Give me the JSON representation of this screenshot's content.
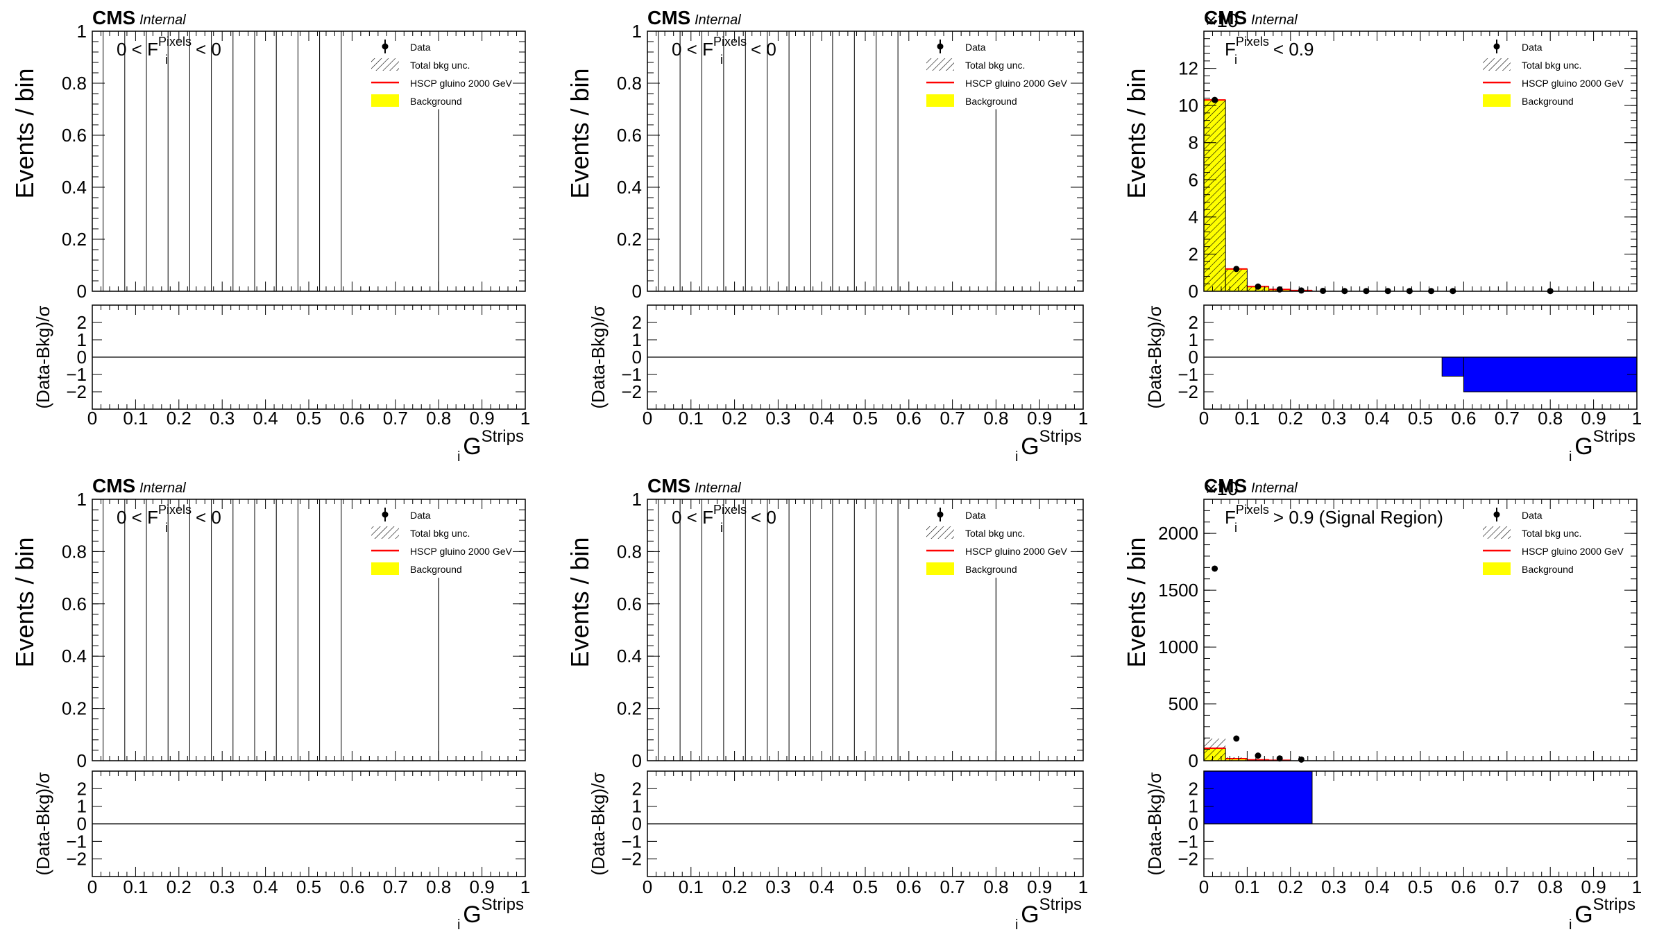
{
  "cms_label": "CMS",
  "internal_label": "Internal",
  "exponent_label": "×10",
  "y_axis_label": "Events / bin",
  "ratio_axis_label": "(Data-Bkg)/σ",
  "x_axis_label": {
    "base": "G",
    "sup": "Strips",
    "sub": "i"
  },
  "legend": [
    {
      "label": "Data",
      "style": "marker"
    },
    {
      "label": "Total bkg unc.",
      "style": "hatch"
    },
    {
      "label": "HSCP gluino 2000 GeV",
      "style": "line",
      "color": "#ff0000"
    },
    {
      "label": "Background",
      "style": "fill",
      "color": "#ffff00"
    }
  ],
  "colors": {
    "background_fill": "#ffff00",
    "signal_line": "#ff0000",
    "pull_fill": "#0000ff",
    "hatch": "#000000"
  },
  "x_ticks": [
    "0",
    "0.1",
    "0.2",
    "0.3",
    "0.4",
    "0.5",
    "0.6",
    "0.7",
    "0.8",
    "0.9",
    "1"
  ],
  "ratio_ticks": [
    "2",
    "1",
    "0",
    "−1",
    "−2"
  ],
  "chart_data": [
    {
      "type": "bar",
      "region_label": {
        "prefix": "0 < F",
        "sup": "Pixels",
        "sub": "i",
        "suffix": "< 0"
      },
      "xlim": [
        0,
        1
      ],
      "ylim": [
        0,
        1
      ],
      "y_ticks": [
        "0",
        "0.2",
        "0.4",
        "0.6",
        "0.8",
        "1"
      ],
      "y_tick_values": [
        0,
        0.2,
        0.4,
        0.6,
        0.8,
        1
      ],
      "show_exponent": false,
      "bin_edges_x": [
        0.025,
        0.075,
        0.125,
        0.175,
        0.225,
        0.275,
        0.325,
        0.375,
        0.425,
        0.475,
        0.525,
        0.575
      ],
      "background": [],
      "uncertainty": [],
      "data_points": [],
      "pulls": [],
      "signal_line_x": 0.8,
      "signal_line_y": 0.7
    },
    {
      "type": "bar",
      "region_label": {
        "prefix": "0 < F",
        "sup": "Pixels",
        "sub": "i",
        "suffix": "< 0"
      },
      "xlim": [
        0,
        1
      ],
      "ylim": [
        0,
        1
      ],
      "y_ticks": [
        "0",
        "0.2",
        "0.4",
        "0.6",
        "0.8",
        "1"
      ],
      "y_tick_values": [
        0,
        0.2,
        0.4,
        0.6,
        0.8,
        1
      ],
      "show_exponent": false,
      "bin_edges_x": [
        0.025,
        0.075,
        0.125,
        0.175,
        0.225,
        0.275,
        0.325,
        0.375,
        0.425,
        0.475,
        0.525,
        0.575
      ],
      "background": [],
      "uncertainty": [],
      "data_points": [],
      "pulls": [],
      "signal_line_x": 0.8,
      "signal_line_y": 0.7
    },
    {
      "type": "bar",
      "region_label": {
        "prefix": "F",
        "sup": "Pixels",
        "sub": "i",
        "suffix": "< 0.9"
      },
      "xlim": [
        0,
        1
      ],
      "ylim": [
        0,
        14
      ],
      "y_ticks": [
        "0",
        "2",
        "4",
        "6",
        "8",
        "10",
        "12"
      ],
      "y_tick_values": [
        0,
        2,
        4,
        6,
        8,
        10,
        12
      ],
      "show_exponent": true,
      "bin_edges_x": [],
      "background": [
        {
          "x0": 0.0,
          "x1": 0.05,
          "y": 10.3
        },
        {
          "x0": 0.05,
          "x1": 0.1,
          "y": 1.2
        },
        {
          "x0": 0.1,
          "x1": 0.15,
          "y": 0.25
        },
        {
          "x0": 0.15,
          "x1": 0.2,
          "y": 0.1
        },
        {
          "x0": 0.2,
          "x1": 0.25,
          "y": 0.04
        }
      ],
      "uncertainty": [],
      "data_points": [
        {
          "x": 0.025,
          "y": 10.3
        },
        {
          "x": 0.075,
          "y": 1.2
        },
        {
          "x": 0.125,
          "y": 0.25
        },
        {
          "x": 0.175,
          "y": 0.1
        },
        {
          "x": 0.225,
          "y": 0.04
        },
        {
          "x": 0.275,
          "y": 0.02
        },
        {
          "x": 0.325,
          "y": 0.01
        },
        {
          "x": 0.375,
          "y": 0.01
        },
        {
          "x": 0.425,
          "y": 0.01
        },
        {
          "x": 0.475,
          "y": 0.01
        },
        {
          "x": 0.525,
          "y": 0.01
        },
        {
          "x": 0.575,
          "y": 0.01
        },
        {
          "x": 0.8,
          "y": 0.01
        }
      ],
      "pulls": [
        {
          "x0": 0.55,
          "x1": 0.6,
          "y": -1.1
        },
        {
          "x0": 0.6,
          "x1": 1.0,
          "y": -2.0
        }
      ],
      "signal_line_x": null,
      "signal_line_y": null
    },
    {
      "type": "bar",
      "region_label": {
        "prefix": "0 < F",
        "sup": "Pixels",
        "sub": "i",
        "suffix": "< 0"
      },
      "xlim": [
        0,
        1
      ],
      "ylim": [
        0,
        1
      ],
      "y_ticks": [
        "0",
        "0.2",
        "0.4",
        "0.6",
        "0.8",
        "1"
      ],
      "y_tick_values": [
        0,
        0.2,
        0.4,
        0.6,
        0.8,
        1
      ],
      "show_exponent": false,
      "bin_edges_x": [
        0.025,
        0.075,
        0.125,
        0.175,
        0.225,
        0.275,
        0.325,
        0.375,
        0.425,
        0.475,
        0.525,
        0.575
      ],
      "background": [],
      "uncertainty": [],
      "data_points": [],
      "pulls": [],
      "signal_line_x": 0.8,
      "signal_line_y": 0.7
    },
    {
      "type": "bar",
      "region_label": {
        "prefix": "0 < F",
        "sup": "Pixels",
        "sub": "i",
        "suffix": "< 0"
      },
      "xlim": [
        0,
        1
      ],
      "ylim": [
        0,
        1
      ],
      "y_ticks": [
        "0",
        "0.2",
        "0.4",
        "0.6",
        "0.8",
        "1"
      ],
      "y_tick_values": [
        0,
        0.2,
        0.4,
        0.6,
        0.8,
        1
      ],
      "show_exponent": false,
      "bin_edges_x": [
        0.025,
        0.075,
        0.125,
        0.175,
        0.225,
        0.275,
        0.325,
        0.375,
        0.425,
        0.475,
        0.525,
        0.575
      ],
      "background": [],
      "uncertainty": [],
      "data_points": [],
      "pulls": [],
      "signal_line_x": 0.8,
      "signal_line_y": 0.7
    },
    {
      "type": "bar",
      "region_label": {
        "prefix": "F",
        "sup": "Pixels",
        "sub": "i",
        "suffix": "> 0.9 (Signal Region)"
      },
      "xlim": [
        0,
        1
      ],
      "ylim": [
        0,
        2300
      ],
      "y_ticks": [
        "0",
        "500",
        "1000",
        "1500",
        "2000"
      ],
      "y_tick_values": [
        0,
        500,
        1000,
        1500,
        2000
      ],
      "show_exponent": true,
      "bin_edges_x": [],
      "background": [
        {
          "x0": 0.0,
          "x1": 0.05,
          "y": 110
        },
        {
          "x0": 0.05,
          "x1": 0.1,
          "y": 18
        },
        {
          "x0": 0.1,
          "x1": 0.15,
          "y": 8
        },
        {
          "x0": 0.15,
          "x1": 0.2,
          "y": 4
        }
      ],
      "uncertainty": [
        {
          "x0": 0.0,
          "x1": 0.05,
          "y0": 110,
          "y1": 195
        },
        {
          "x0": 0.05,
          "x1": 0.1,
          "y0": 18,
          "y1": 30
        }
      ],
      "data_points": [
        {
          "x": 0.025,
          "y": 1690
        },
        {
          "x": 0.075,
          "y": 195
        },
        {
          "x": 0.125,
          "y": 45
        },
        {
          "x": 0.175,
          "y": 20
        },
        {
          "x": 0.225,
          "y": 10
        }
      ],
      "pulls": [
        {
          "x0": 0.0,
          "x1": 0.25,
          "y": 3.0
        }
      ],
      "signal_line_x": null,
      "signal_line_y": null
    }
  ]
}
